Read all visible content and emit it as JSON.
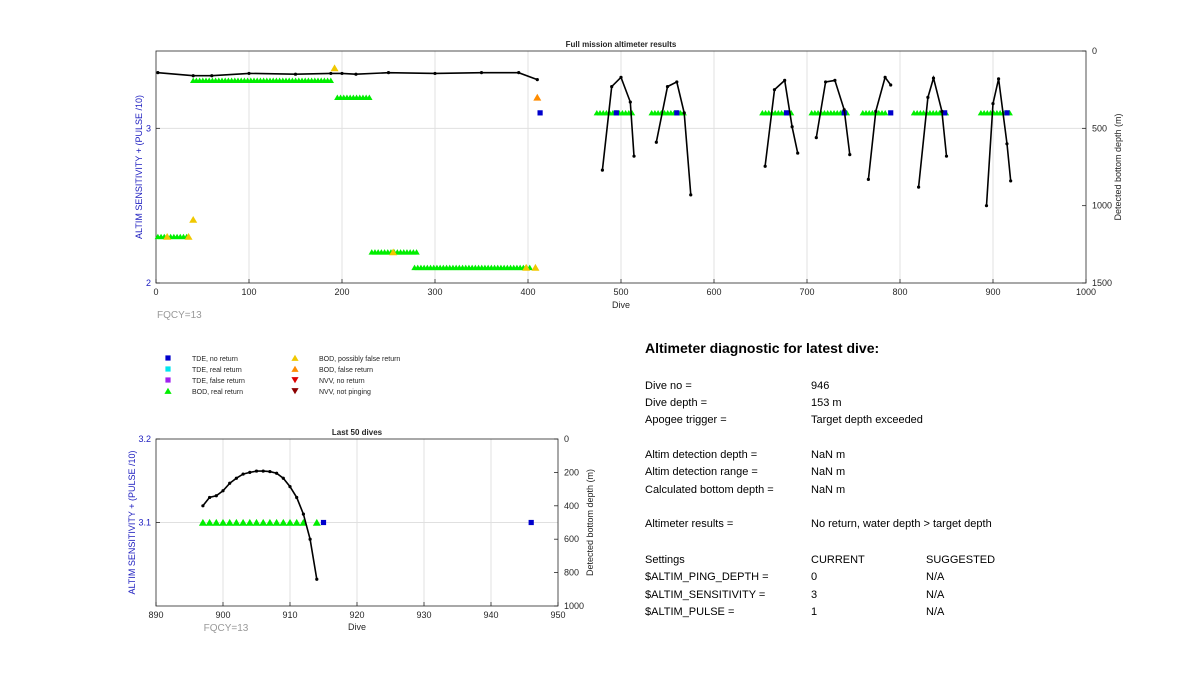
{
  "chart_data": [
    {
      "type": "scatter",
      "title": "Full mission altimeter results",
      "xlabel": "Dive",
      "ylabel": "ALTIM SENSITIVITY + (PULSE /10)",
      "y2label": "Detected bottom depth (m)",
      "xlim": [
        0,
        1000
      ],
      "ylim": [
        2,
        3.5
      ],
      "y2lim": [
        1500,
        0
      ],
      "xticks": [
        0,
        100,
        200,
        300,
        400,
        500,
        600,
        700,
        800,
        900,
        1000
      ],
      "yticks": [
        2,
        3
      ],
      "y2ticks": [
        0,
        500,
        1000,
        1500
      ],
      "grid": true,
      "annotation": "FQCY=13",
      "tde_no_return_pts": [
        [
          413,
          3.1
        ],
        [
          495,
          3.1
        ],
        [
          560,
          3.1
        ],
        [
          678,
          3.1
        ],
        [
          740,
          3.1
        ],
        [
          790,
          3.1
        ],
        [
          848,
          3.1
        ],
        [
          915,
          3.1
        ]
      ],
      "bod_real_segments": [
        [
          40,
          188,
          3.31
        ],
        [
          195,
          232,
          3.2
        ],
        [
          2,
          35,
          2.3
        ],
        [
          232,
          283,
          2.2
        ],
        [
          278,
          405,
          2.1
        ],
        [
          474,
          512,
          3.1
        ],
        [
          533,
          568,
          3.1
        ],
        [
          652,
          685,
          3.1
        ],
        [
          705,
          745,
          3.1
        ],
        [
          760,
          785,
          3.1
        ],
        [
          815,
          852,
          3.1
        ],
        [
          887,
          920,
          3.1
        ]
      ],
      "bod_possibly_false_pts": [
        [
          192,
          3.39
        ],
        [
          40,
          2.41
        ],
        [
          12,
          2.3
        ],
        [
          35,
          2.3
        ],
        [
          255,
          2.2
        ],
        [
          408,
          2.1
        ],
        [
          398,
          2.1
        ]
      ],
      "bod_false_pts": [
        [
          410,
          3.2
        ]
      ],
      "bottom_depth_top": [
        [
          2,
          140
        ],
        [
          40,
          160
        ],
        [
          60,
          160
        ],
        [
          100,
          145
        ],
        [
          150,
          150
        ],
        [
          188,
          145
        ],
        [
          200,
          145
        ],
        [
          215,
          150
        ],
        [
          250,
          140
        ],
        [
          300,
          145
        ],
        [
          350,
          140
        ],
        [
          390,
          140
        ],
        [
          410,
          185
        ]
      ],
      "bottom_depth_dives": [
        [
          [
            480,
            770
          ],
          [
            490,
            230
          ],
          [
            500,
            170
          ],
          [
            510,
            330
          ],
          [
            514,
            680
          ]
        ],
        [
          [
            538,
            590
          ],
          [
            550,
            230
          ],
          [
            560,
            200
          ],
          [
            568,
            400
          ],
          [
            575,
            930
          ]
        ],
        [
          [
            655,
            745
          ],
          [
            665,
            250
          ],
          [
            676,
            190
          ],
          [
            684,
            490
          ],
          [
            690,
            660
          ]
        ],
        [
          [
            710,
            560
          ],
          [
            720,
            200
          ],
          [
            730,
            190
          ],
          [
            740,
            380
          ],
          [
            746,
            670
          ]
        ],
        [
          [
            766,
            830
          ],
          [
            774,
            390
          ],
          [
            784,
            170
          ],
          [
            790,
            220
          ]
        ],
        [
          [
            820,
            880
          ],
          [
            830,
            300
          ],
          [
            836,
            175
          ],
          [
            845,
            390
          ],
          [
            850,
            680
          ]
        ],
        [
          [
            893,
            1000
          ],
          [
            900,
            340
          ],
          [
            906,
            180
          ],
          [
            915,
            600
          ],
          [
            919,
            840
          ]
        ]
      ]
    },
    {
      "type": "scatter",
      "title": "Last 50 dives",
      "xlabel": "Dive",
      "ylabel": "ALTIM SENSITIVITY + (PULSE /10)",
      "y2label": "Detected bottom depth (m)",
      "xlim": [
        890,
        950
      ],
      "ylim": [
        3.0,
        3.2
      ],
      "y2lim": [
        1000,
        0
      ],
      "xticks": [
        890,
        900,
        910,
        920,
        930,
        940,
        950
      ],
      "yticks": [
        3.1,
        3.2
      ],
      "y2ticks": [
        0,
        200,
        400,
        600,
        800,
        1000
      ],
      "grid": true,
      "annotation": "FQCY=13",
      "bod_real_x": [
        897,
        898,
        899,
        900,
        901,
        902,
        903,
        904,
        905,
        906,
        907,
        908,
        909,
        910,
        911,
        912,
        914
      ],
      "bod_real_y": 3.1,
      "tde_no_return_pts": [
        [
          915,
          3.1
        ],
        [
          946,
          3.1
        ]
      ],
      "bottom_depth": [
        [
          897,
          400
        ],
        [
          898,
          350
        ],
        [
          899,
          340
        ],
        [
          900,
          310
        ],
        [
          901,
          265
        ],
        [
          902,
          235
        ],
        [
          903,
          210
        ],
        [
          904,
          200
        ],
        [
          905,
          192
        ],
        [
          906,
          192
        ],
        [
          907,
          195
        ],
        [
          908,
          205
        ],
        [
          909,
          235
        ],
        [
          910,
          285
        ],
        [
          911,
          350
        ],
        [
          912,
          450
        ],
        [
          913,
          600
        ],
        [
          914,
          840
        ]
      ]
    }
  ],
  "legend": [
    {
      "label": "TDE, no return",
      "marker": "square",
      "color": "#0000cc"
    },
    {
      "label": "TDE, real return",
      "marker": "square",
      "color": "#00e5ee"
    },
    {
      "label": "TDE, false return",
      "marker": "square",
      "color": "#a020f0"
    },
    {
      "label": "BOD, real return",
      "marker": "triangle-up",
      "color": "#00ee00"
    },
    {
      "label": "BOD, possibly false return",
      "marker": "triangle-up",
      "color": "#f0c800"
    },
    {
      "label": "BOD, false return",
      "marker": "triangle-up",
      "color": "#ff8c00"
    },
    {
      "label": "NVV, no return",
      "marker": "triangle-down",
      "color": "#dd0000"
    },
    {
      "label": "NVV, not pinging",
      "marker": "triangle-down",
      "color": "#8b0000"
    }
  ],
  "diagnostic": {
    "title": "Altimeter diagnostic for latest dive:",
    "rows1": [
      {
        "label": "Dive no =",
        "value": "946"
      },
      {
        "label": "Dive depth =",
        "value": "153 m"
      },
      {
        "label": "Apogee trigger =",
        "value": "Target depth exceeded"
      }
    ],
    "rows2": [
      {
        "label": "Altim detection depth =",
        "value": "NaN m"
      },
      {
        "label": "Altim detection range =",
        "value": "NaN m"
      },
      {
        "label": "Calculated bottom depth =",
        "value": "NaN m"
      }
    ],
    "results": {
      "label": "Altimeter results =",
      "value": "No return, water depth > target depth"
    },
    "settings_header": {
      "label": "Settings",
      "current": "CURRENT",
      "suggested": "SUGGESTED"
    },
    "settings": [
      {
        "label": "$ALTIM_PING_DEPTH =",
        "current": "0",
        "suggested": "N/A"
      },
      {
        "label": "$ALTIM_SENSITIVITY =",
        "current": "3",
        "suggested": "N/A"
      },
      {
        "label": "$ALTIM_PULSE =",
        "current": "1",
        "suggested": "N/A"
      }
    ]
  },
  "colors": {
    "axis": "#262626",
    "ylabel": "#2020c0",
    "grid": "#e0e0e0",
    "fqcy": "#999999",
    "depth": "#000000"
  }
}
